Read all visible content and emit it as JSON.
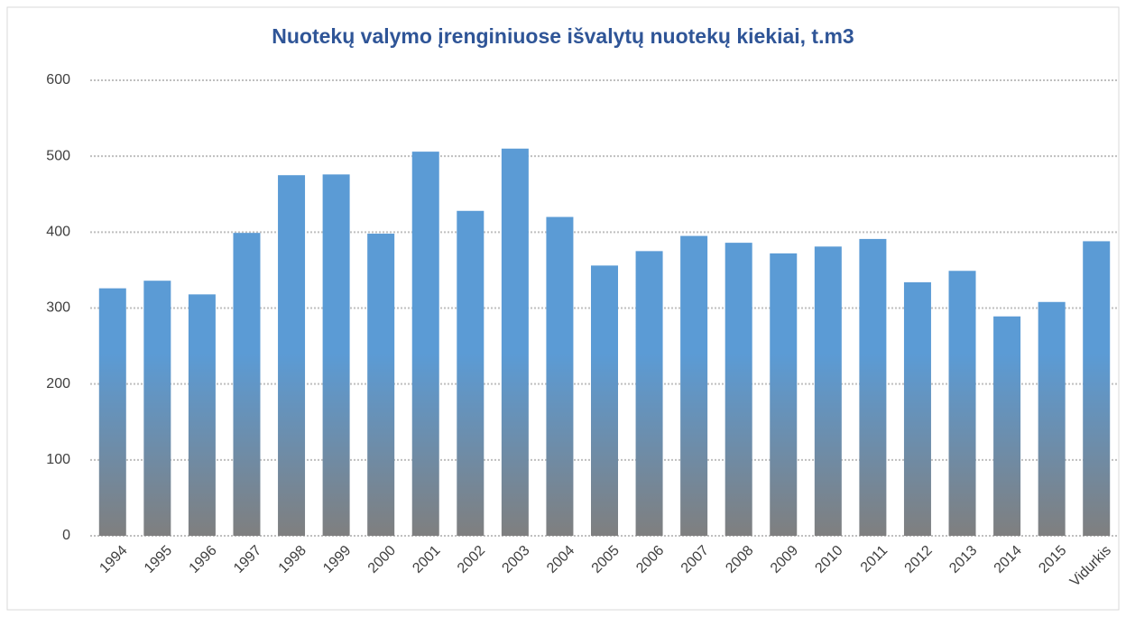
{
  "chart_data": {
    "type": "bar",
    "title": "Nuotekų valymo įrenginiuose išvalytų nuotekų kiekiai, t.m3",
    "categories": [
      "1994",
      "1995",
      "1996",
      "1997",
      "1998",
      "1999",
      "2000",
      "2001",
      "2002",
      "2003",
      "2004",
      "2005",
      "2006",
      "2007",
      "2008",
      "2009",
      "2010",
      "2011",
      "2012",
      "2013",
      "2014",
      "2015",
      "Vidurkis"
    ],
    "values": [
      326,
      336,
      318,
      399,
      475,
      476,
      398,
      506,
      428,
      510,
      420,
      356,
      375,
      395,
      386,
      372,
      381,
      391,
      334,
      349,
      289,
      308,
      388
    ],
    "color": "#5b9bd5",
    "ylim": [
      0,
      600
    ],
    "yticks": [
      0,
      100,
      200,
      300,
      400,
      500,
      600
    ],
    "grid": true
  }
}
